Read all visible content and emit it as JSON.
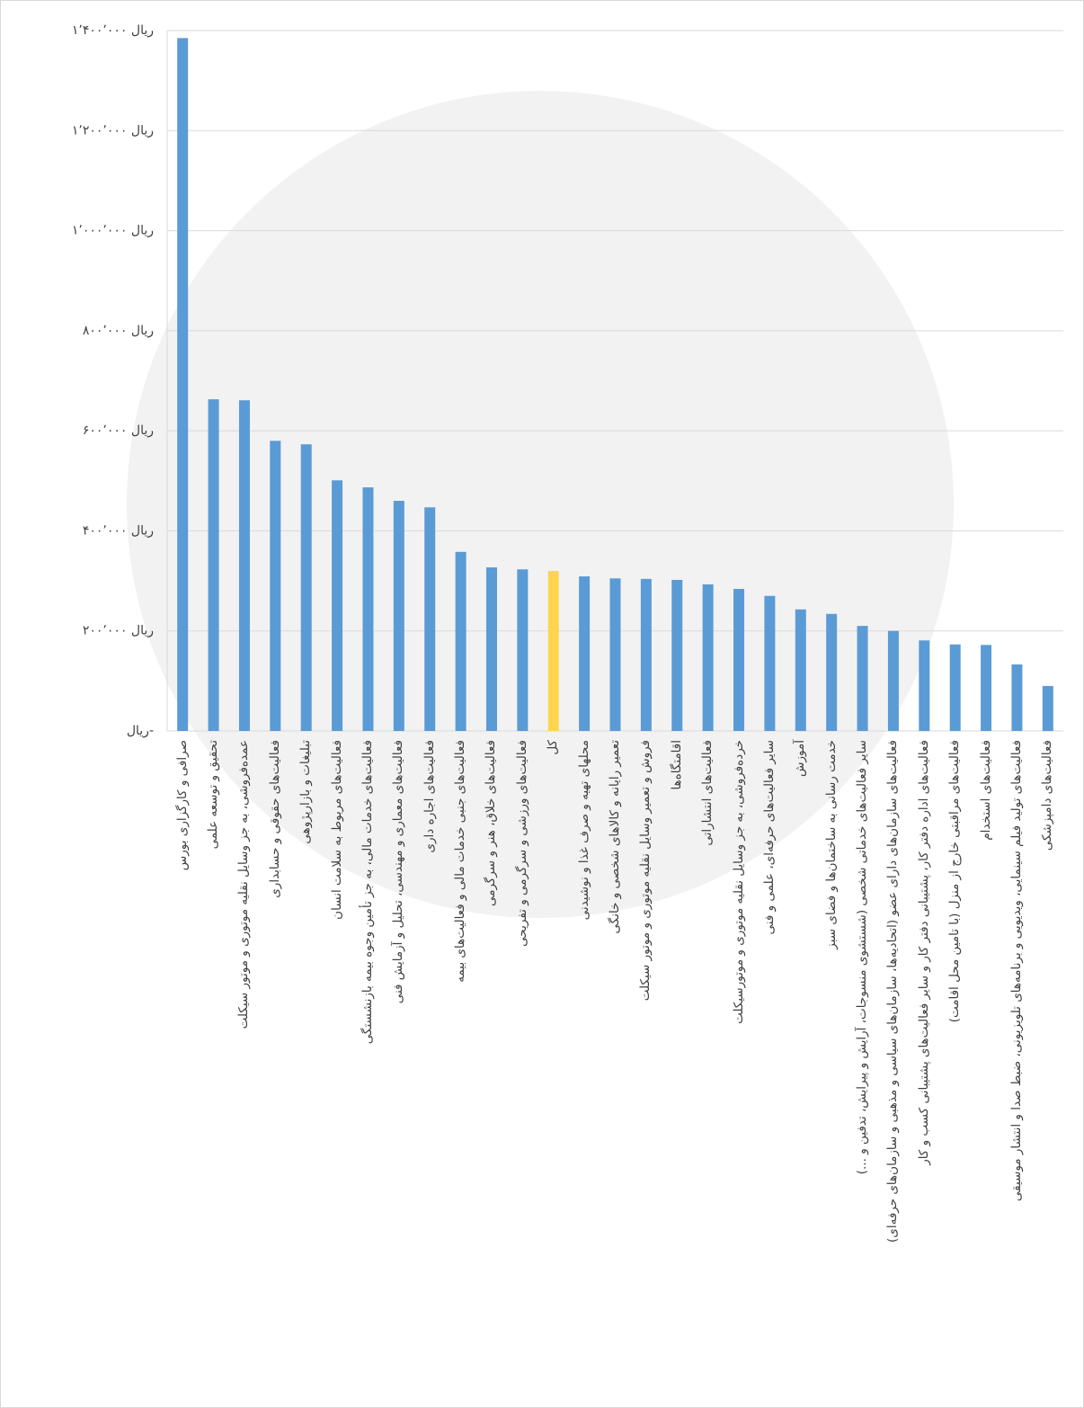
{
  "chart_data": {
    "type": "bar",
    "categories": [
      "صرافی و کارگزاری بورس",
      "تحقیق و توسعه علمی",
      "عمده‌فروشی، به جز وسایل نقلیه موتوری و موتور سیکلت",
      "فعالیت‌های حقوقی و حسابداری",
      "تبلیغات و بازارپژوهی",
      "فعالیت‌های مربوط به سلامت انسان",
      "فعالیت‌های خدمات مالی، به جز تأمین وجوه بیمه بازنشستگی",
      "فعالیت‌های معماری و مهندسی، تحلیل و آزمایش فنی",
      "فعالیت‌های اجاره داری",
      "فعالیت‌های جنبی خدمات مالی و فعالیت‌های بیمه",
      "فعالیت‌های خلاق، هنر و سرگرمی",
      "فعالیت‌های ورزشی و سرگرمی و تفریحی",
      "کل",
      "محلهای تهیه و صرف غذا و نوشیدنی",
      "تعمیر رایانه و کالاهای شخصی و خانگی",
      "فروش و تعمیر وسایل نقلیه موتوری و موتور سیکلت",
      "اقامتگاه‌ها",
      "فعالیت‌های انتشاراتی",
      "خرده‌فروشی، به جز وسایل نقلیه موتوری و موتورسیکلت",
      "سایر فعالیت‌های حرفه‌ای، علمی و فنی",
      "آموزش",
      "خدمت رسانی به ساختمان‌ها و فضای سبز",
      "سایر فعالیت‌های خدماتی شخصی (شستشوی منسوجات، آرایش و پیرایش، تدفین و ...)",
      "فعالیت‌های سازمان‌های دارای عضو (اتحادیه‌ها، سازمان‌های سیاسی و مذهبی و سازمان‌های حرفه‌ای)",
      "فعالیت‌های اداره دفتر کار، پشتیبانی دفتر کار و سایر فعالیت‌های پشتیبانی کسب و کار",
      "فعالیت‌های مراقبتی خارج از منزل (با تامین محل اقامت)",
      "فعالیت‌های استخدام",
      "فعالیت‌های تولید فیلم سینمایی، ویدیویی و برنامه‌های تلویزیونی، ضبط صدا و انتشار موسیقی",
      "فعالیت‌های دامپزشکی"
    ],
    "values": [
      1385000,
      663000,
      661000,
      580000,
      573000,
      501000,
      487000,
      460000,
      447000,
      358000,
      327000,
      323000,
      320000,
      309000,
      305000,
      304000,
      302000,
      293000,
      284000,
      270000,
      243000,
      234000,
      210000,
      200000,
      181000,
      173000,
      172000,
      133000,
      90000
    ],
    "colors": [
      "#5b9bd5",
      "#5b9bd5",
      "#5b9bd5",
      "#5b9bd5",
      "#5b9bd5",
      "#5b9bd5",
      "#5b9bd5",
      "#5b9bd5",
      "#5b9bd5",
      "#5b9bd5",
      "#5b9bd5",
      "#5b9bd5",
      "#ffd54f",
      "#5b9bd5",
      "#5b9bd5",
      "#5b9bd5",
      "#5b9bd5",
      "#5b9bd5",
      "#5b9bd5",
      "#5b9bd5",
      "#5b9bd5",
      "#5b9bd5",
      "#5b9bd5",
      "#5b9bd5",
      "#5b9bd5",
      "#5b9bd5",
      "#5b9bd5",
      "#5b9bd5",
      "#5b9bd5"
    ],
    "ylim": [
      0,
      1400000
    ],
    "yticks": [
      {
        "value": 0,
        "label": "-ریال"
      },
      {
        "value": 200000,
        "label": "ریال ۲۰۰٬۰۰۰"
      },
      {
        "value": 400000,
        "label": "ریال ۴۰۰٬۰۰۰"
      },
      {
        "value": 600000,
        "label": "ریال ۶۰۰٬۰۰۰"
      },
      {
        "value": 800000,
        "label": "ریال ۸۰۰٬۰۰۰"
      },
      {
        "value": 1000000,
        "label": "ریال ۱٬۰۰۰٬۰۰۰"
      },
      {
        "value": 1200000,
        "label": "ریال ۱٬۲۰۰٬۰۰۰"
      },
      {
        "value": 1400000,
        "label": "ریال ۱٬۴۰۰٬۰۰۰"
      }
    ],
    "grid": true
  }
}
